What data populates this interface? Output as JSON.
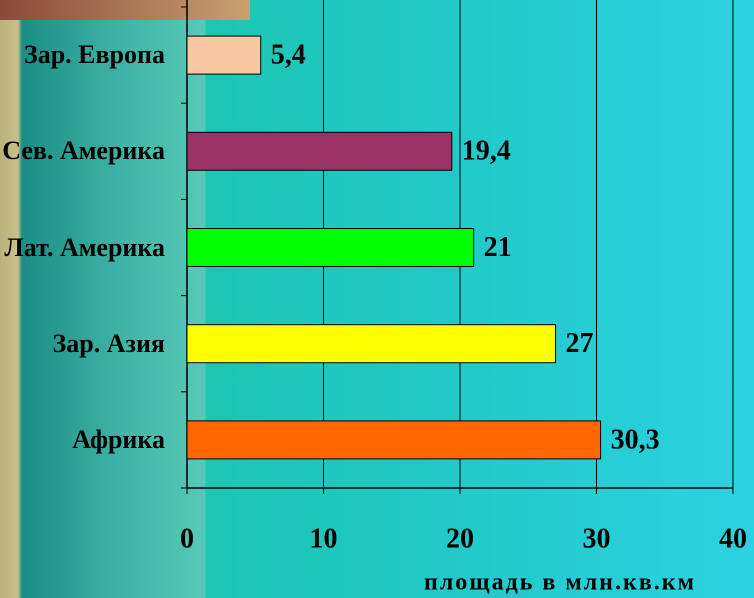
{
  "chart_data": {
    "type": "bar",
    "orientation": "horizontal",
    "categories": [
      "Зар. Европа",
      "Сев. Америка",
      "Лат. Америка",
      "Зар. Азия",
      "Африка"
    ],
    "values": [
      5.4,
      19.4,
      21,
      27,
      30.3
    ],
    "value_labels": [
      "5,4",
      "19,4",
      "21",
      "27",
      "30,3"
    ],
    "colors": [
      "#f9c79f",
      "#993366",
      "#00ff00",
      "#ffff00",
      "#ff6600"
    ],
    "x_label": "площадь в млн.кв.км",
    "xlim": [
      0,
      40
    ],
    "xticks": [
      0,
      10,
      20,
      30,
      40
    ],
    "grid": true
  }
}
